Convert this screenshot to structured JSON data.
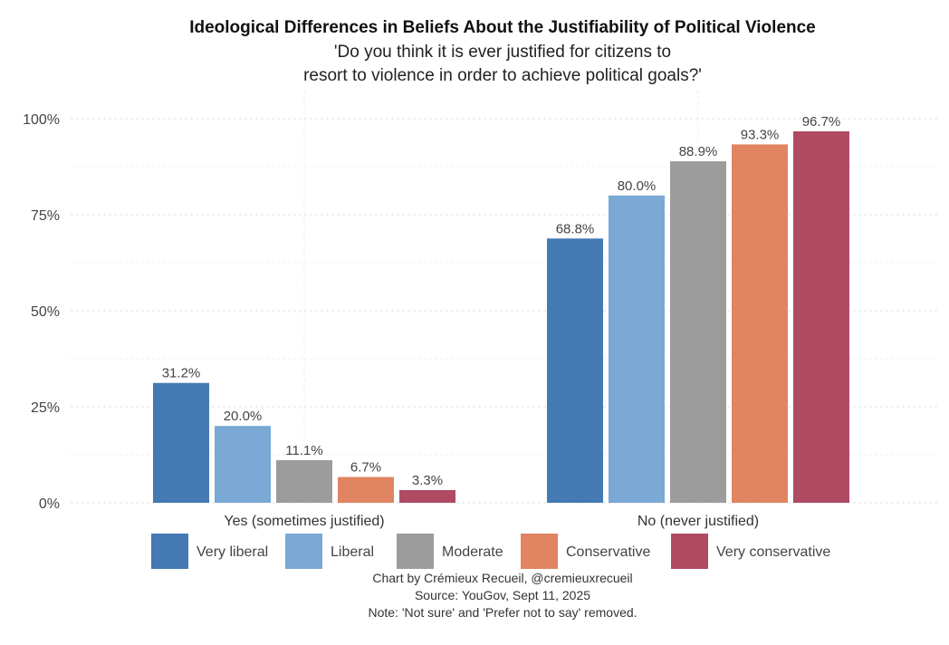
{
  "chart_data": {
    "type": "bar",
    "title": "Ideological Differences in Beliefs About the Justifiability of Political Violence",
    "subtitle": [
      "'Do you think it is ever justified for citizens to",
      "resort to violence in order to achieve political goals?'"
    ],
    "categories": [
      "Yes (sometimes justified)",
      "No (never justified)"
    ],
    "series": [
      {
        "name": "Very liberal",
        "color": "#4479b3",
        "values": [
          31.2,
          68.8
        ],
        "labels": [
          "31.2%",
          "68.8%"
        ]
      },
      {
        "name": "Liberal",
        "color": "#79a9d4",
        "values": [
          20.0,
          80.0
        ],
        "labels": [
          "20.0%",
          "80.0%"
        ]
      },
      {
        "name": "Moderate",
        "color": "#9c9c9c",
        "values": [
          11.1,
          88.9
        ],
        "labels": [
          "11.1%",
          "88.9%"
        ]
      },
      {
        "name": "Conservative",
        "color": "#e08462",
        "values": [
          6.7,
          93.3
        ],
        "labels": [
          "6.7%",
          "93.3%"
        ]
      },
      {
        "name": "Very conservative",
        "color": "#b04a63",
        "values": [
          3.3,
          96.7
        ],
        "labels": [
          "3.3%",
          "96.7%"
        ]
      }
    ],
    "yticks": [
      0,
      25,
      50,
      75,
      100
    ],
    "ytick_labels": [
      "0%",
      "25%",
      "50%",
      "75%",
      "100%"
    ],
    "ylim": [
      0,
      100
    ],
    "xlabel": "",
    "ylabel": "",
    "grid": true,
    "legend_position": "bottom",
    "caption": [
      "Chart by Crémieux Recueil, @cremieuxrecueil",
      "Source: YouGov, Sept 11, 2025",
      "Note: 'Not sure' and 'Prefer not to say' removed."
    ]
  }
}
